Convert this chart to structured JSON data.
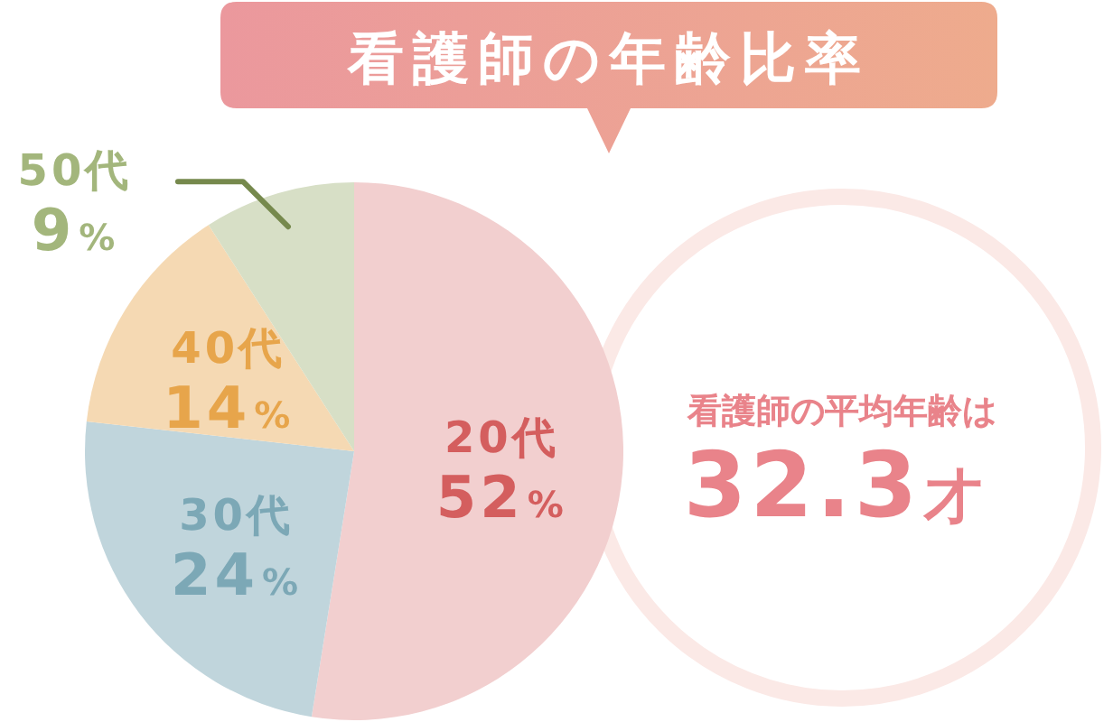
{
  "chart_data": {
    "type": "pie",
    "title": "看護師の年齢比率",
    "categories": [
      "20代",
      "30代",
      "40代",
      "50代"
    ],
    "values": [
      52,
      24,
      14,
      9
    ],
    "value_labels": [
      "52%",
      "24%",
      "14%",
      "9%"
    ],
    "colors": [
      "#f2cfcf",
      "#c0d5dc",
      "#f5d9b3",
      "#d7dfc6"
    ],
    "annotations": [
      "看護師の平均年齢は",
      "32.3才"
    ]
  }
}
